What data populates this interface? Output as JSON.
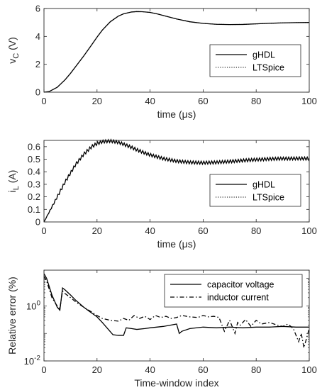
{
  "chart_data": [
    {
      "type": "line",
      "xlabel": "time (μs)",
      "ylabel": "v",
      "ylabel_sub": "C",
      "ylabel_unit": " (V)",
      "xlim": [
        0,
        100
      ],
      "ylim": [
        0,
        6
      ],
      "xticks": [
        0,
        20,
        40,
        60,
        80,
        100
      ],
      "yticks": [
        0,
        2,
        4,
        6
      ],
      "yscale": "linear",
      "legend": "right",
      "series": [
        {
          "name": "gHDL",
          "style": "solid",
          "x": [
            0,
            2,
            5,
            8,
            10,
            12,
            15,
            18,
            20,
            22,
            25,
            28,
            30,
            33,
            35,
            37,
            40,
            43,
            45,
            50,
            55,
            60,
            65,
            70,
            75,
            80,
            85,
            90,
            95,
            100
          ],
          "y": [
            0,
            0.05,
            0.35,
            0.9,
            1.35,
            1.85,
            2.6,
            3.4,
            3.95,
            4.45,
            5.05,
            5.45,
            5.62,
            5.75,
            5.78,
            5.77,
            5.72,
            5.6,
            5.5,
            5.25,
            5.05,
            4.93,
            4.87,
            4.85,
            4.86,
            4.9,
            4.94,
            4.97,
            4.99,
            5.0
          ]
        },
        {
          "name": "LTSpice",
          "style": "dotted",
          "x": [
            0,
            2,
            5,
            8,
            10,
            12,
            15,
            18,
            20,
            22,
            25,
            28,
            30,
            33,
            35,
            37,
            40,
            43,
            45,
            50,
            55,
            60,
            65,
            70,
            75,
            80,
            85,
            90,
            95,
            100
          ],
          "y": [
            0,
            0.05,
            0.35,
            0.9,
            1.35,
            1.85,
            2.6,
            3.4,
            3.95,
            4.45,
            5.05,
            5.45,
            5.62,
            5.75,
            5.78,
            5.77,
            5.72,
            5.6,
            5.5,
            5.25,
            5.05,
            4.93,
            4.87,
            4.85,
            4.86,
            4.9,
            4.94,
            4.97,
            4.99,
            5.0
          ]
        }
      ]
    },
    {
      "type": "line",
      "xlabel": "time (μs)",
      "ylabel": "i",
      "ylabel_sub": "L",
      "ylabel_unit": " (A)",
      "xlim": [
        0,
        100
      ],
      "ylim": [
        0,
        0.65
      ],
      "xticks": [
        0,
        20,
        40,
        60,
        80,
        100
      ],
      "yticks": [
        0,
        0.1,
        0.2,
        0.3,
        0.4,
        0.5,
        0.6
      ],
      "yscale": "linear",
      "legend": "right",
      "ripple_amplitude": 0.012,
      "ripple_period": 1,
      "series": [
        {
          "name": "gHDL",
          "style": "solid",
          "x": [
            0,
            2,
            5,
            8,
            10,
            12,
            15,
            18,
            20,
            22,
            25,
            28,
            30,
            33,
            35,
            38,
            40,
            45,
            50,
            55,
            60,
            65,
            70,
            75,
            80,
            85,
            90,
            95,
            100
          ],
          "y": [
            0,
            0.08,
            0.2,
            0.32,
            0.39,
            0.46,
            0.54,
            0.6,
            0.625,
            0.64,
            0.645,
            0.635,
            0.62,
            0.595,
            0.575,
            0.55,
            0.535,
            0.505,
            0.485,
            0.475,
            0.472,
            0.475,
            0.482,
            0.49,
            0.497,
            0.502,
            0.505,
            0.506,
            0.505
          ]
        },
        {
          "name": "LTSpice",
          "style": "dotted",
          "x": [
            0,
            2,
            5,
            8,
            10,
            12,
            15,
            18,
            20,
            22,
            25,
            28,
            30,
            33,
            35,
            38,
            40,
            45,
            50,
            55,
            60,
            65,
            70,
            75,
            80,
            85,
            90,
            95,
            100
          ],
          "y": [
            0,
            0.08,
            0.2,
            0.32,
            0.39,
            0.46,
            0.54,
            0.6,
            0.625,
            0.64,
            0.645,
            0.635,
            0.62,
            0.595,
            0.575,
            0.55,
            0.535,
            0.505,
            0.485,
            0.475,
            0.472,
            0.475,
            0.482,
            0.49,
            0.497,
            0.502,
            0.505,
            0.506,
            0.505
          ]
        }
      ]
    },
    {
      "type": "line",
      "xlabel": "Time-window index",
      "ylabel": "Relative error (%)",
      "xlim": [
        0,
        100
      ],
      "ylim": [
        0.01,
        20
      ],
      "xticks": [
        0,
        20,
        40,
        60,
        80,
        100
      ],
      "yticks": [
        {
          "base": "10",
          "exp": "0",
          "value": 1
        },
        {
          "base": "10",
          "exp": "-2",
          "value": 0.01
        }
      ],
      "yscale": "log",
      "legend": "top-right",
      "series": [
        {
          "name": "capacitor voltage",
          "style": "solid",
          "x": [
            0,
            1,
            2,
            3,
            4,
            5,
            6,
            7,
            8,
            10,
            12,
            15,
            18,
            20,
            22,
            24,
            26,
            28,
            30,
            31,
            33,
            35,
            38,
            40,
            45,
            50,
            51,
            52,
            55,
            60,
            65,
            70,
            75,
            80,
            85,
            90,
            95,
            100
          ],
          "y": [
            15,
            10,
            5,
            2.5,
            1.5,
            0.9,
            0.7,
            4.5,
            3.8,
            2.5,
            1.6,
            0.9,
            0.55,
            0.4,
            0.25,
            0.15,
            0.09,
            0.085,
            0.085,
            0.16,
            0.15,
            0.14,
            0.15,
            0.16,
            0.18,
            0.22,
            0.1,
            0.12,
            0.15,
            0.17,
            0.16,
            0.17,
            0.16,
            0.17,
            0.17,
            0.18,
            0.17,
            0.17
          ]
        },
        {
          "name": "inductor current",
          "style": "dashdot",
          "x": [
            0,
            1,
            2,
            3,
            4,
            5,
            6,
            7,
            8,
            10,
            12,
            15,
            18,
            20,
            22,
            25,
            28,
            30,
            32,
            34,
            36,
            38,
            40,
            42,
            44,
            46,
            48,
            50,
            52,
            55,
            58,
            60,
            62,
            64,
            66,
            68,
            70,
            72,
            73,
            74,
            76,
            78,
            80,
            82,
            85,
            88,
            90,
            92,
            94,
            96,
            97,
            98,
            100
          ],
          "y": [
            12,
            8,
            4,
            2,
            1.4,
            1,
            0.8,
            3.5,
            2.8,
            2,
            1.4,
            0.9,
            0.6,
            0.45,
            0.35,
            0.3,
            0.28,
            0.35,
            0.3,
            0.45,
            0.35,
            0.42,
            0.32,
            0.45,
            0.38,
            0.42,
            0.35,
            0.38,
            0.45,
            0.4,
            0.38,
            0.45,
            0.4,
            0.42,
            0.38,
            0.12,
            0.3,
            0.1,
            0.25,
            0.2,
            0.32,
            0.18,
            0.3,
            0.22,
            0.25,
            0.2,
            0.18,
            0.22,
            0.15,
            0.05,
            0.1,
            0.03,
            0.15
          ]
        }
      ]
    }
  ]
}
